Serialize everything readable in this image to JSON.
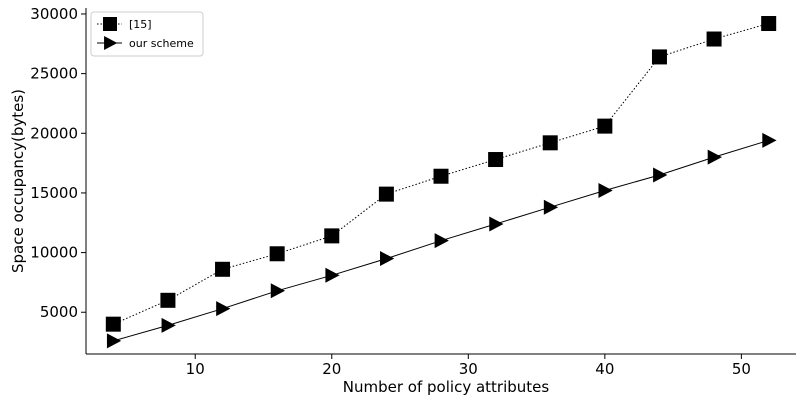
{
  "chart_data": {
    "type": "line",
    "xlabel": "Number of policy attributes",
    "ylabel": "Space occupancy(bytes)",
    "xlim": [
      2,
      54
    ],
    "ylim": [
      1500,
      30500
    ],
    "xticks": [
      10,
      20,
      30,
      40,
      50
    ],
    "yticks": [
      5000,
      10000,
      15000,
      20000,
      25000,
      30000
    ],
    "grid": false,
    "legend": "top-left",
    "x": [
      4,
      8,
      12,
      16,
      20,
      24,
      28,
      32,
      36,
      40,
      44,
      48,
      52
    ],
    "series": [
      {
        "name": "[15]",
        "marker": "square",
        "line_style": "dotted",
        "color": "#000000",
        "values": [
          4000,
          6000,
          8600,
          9900,
          11400,
          14900,
          16400,
          17800,
          19200,
          20600,
          26400,
          27900,
          29200
        ]
      },
      {
        "name": "our scheme",
        "marker": "triangle-right",
        "line_style": "solid",
        "color": "#000000",
        "values": [
          2600,
          3900,
          5300,
          6800,
          8100,
          9500,
          11000,
          12400,
          13800,
          15200,
          16500,
          18000,
          19400
        ]
      }
    ]
  }
}
